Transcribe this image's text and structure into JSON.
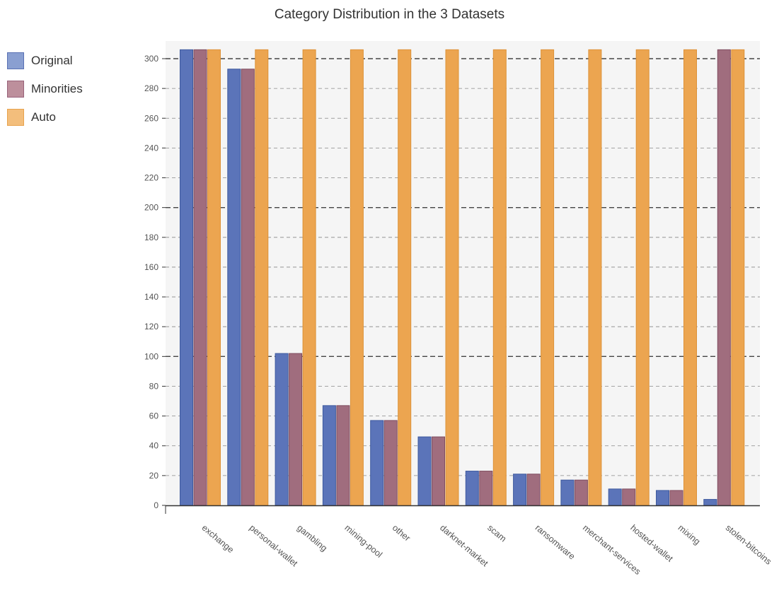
{
  "title": "Category Distribution in the 3 Datasets",
  "colors": {
    "plot_background": "#f5f5f5",
    "grid": "#888888",
    "axis": "#333333"
  },
  "legend": {
    "placement": "left",
    "items": [
      {
        "label": "Original",
        "fill": "#8a9fd1",
        "stroke": "#5a71b4"
      },
      {
        "label": "Minorities",
        "fill": "#bd8f9c",
        "stroke": "#98627a"
      },
      {
        "label": "Auto",
        "fill": "#f3be7c",
        "stroke": "#e8a34d"
      }
    ]
  },
  "chart_data": {
    "type": "bar",
    "title": "Category Distribution in the 3 Datasets",
    "xlabel": "",
    "ylabel": "",
    "ylim": [
      0,
      310
    ],
    "yticks": [
      0,
      20,
      40,
      60,
      80,
      100,
      120,
      140,
      160,
      180,
      200,
      220,
      240,
      260,
      280,
      300
    ],
    "grid": true,
    "categories": [
      "exchange",
      "personal-wallet",
      "gambling",
      "mining-pool",
      "other",
      "darknet-market",
      "scam",
      "ransomware",
      "merchant-services",
      "hosted-wallet",
      "mixing",
      "stolen-bitcoins"
    ],
    "series": [
      {
        "name": "Original",
        "fill": "#5b74b9",
        "stroke": "#3e5a9e",
        "values": [
          306,
          293,
          102,
          67,
          57,
          46,
          23,
          21,
          17,
          11,
          10,
          4
        ]
      },
      {
        "name": "Minorities",
        "fill": "#a06d7e",
        "stroke": "#7f4d60",
        "values": [
          306,
          293,
          102,
          67,
          57,
          46,
          23,
          21,
          17,
          11,
          10,
          306
        ]
      },
      {
        "name": "Auto",
        "fill": "#eca550",
        "stroke": "#dd9239",
        "values": [
          306,
          306,
          306,
          306,
          306,
          306,
          306,
          306,
          306,
          306,
          306,
          306
        ]
      }
    ]
  }
}
